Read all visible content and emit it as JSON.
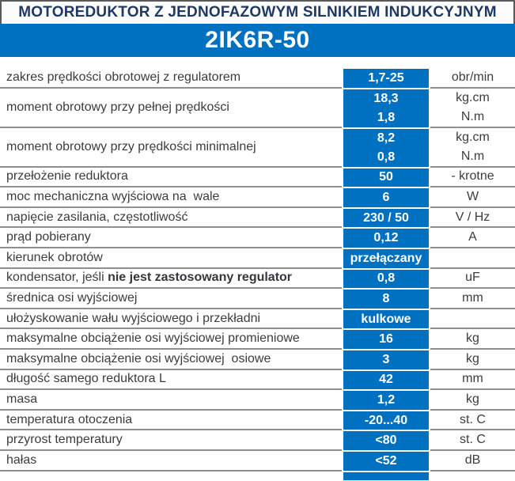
{
  "header": {
    "title": "MOTOREDUKTOR Z JEDNOFAZOWYM SILNIKIEM INDUKCYJNYM",
    "model": "2IK6R-50"
  },
  "colors": {
    "accent_blue": "#0070C0",
    "title_text": "#1F3864",
    "body_text": "#3C3C3C",
    "separator": "#8F8F8F",
    "value_text": "#FFFFFF"
  },
  "table": {
    "rows": [
      {
        "label": "zakres prędkości obrotowej z regulatorem",
        "values": [
          "1,7-25"
        ],
        "units": [
          "obr/min"
        ]
      },
      {
        "label": "moment obrotowy przy pełnej prędkości",
        "values": [
          "18,3",
          "1,8"
        ],
        "units": [
          "kg.cm",
          "N.m"
        ]
      },
      {
        "label": "moment obrotowy przy prędkości minimalnej",
        "values": [
          "8,2",
          "0,8"
        ],
        "units": [
          "kg.cm",
          "N.m"
        ]
      },
      {
        "label": "przełożenie reduktora",
        "values": [
          "50"
        ],
        "units": [
          "- krotne"
        ]
      },
      {
        "label": "moc mechaniczna wyjściowa na  wale",
        "values": [
          "6"
        ],
        "units": [
          "W"
        ]
      },
      {
        "label": "napięcie zasilania, częstotliwość",
        "values": [
          "230 / 50"
        ],
        "units": [
          "V / Hz"
        ]
      },
      {
        "label": "prąd pobierany",
        "values": [
          "0,12"
        ],
        "units": [
          "A"
        ]
      },
      {
        "label": "kierunek obrotów",
        "values": [
          "przełączany"
        ],
        "units": [
          ""
        ]
      },
      {
        "label": "kondensator, jeśli ",
        "label_bold": "nie jest zastosowany regulator",
        "values": [
          "0,8"
        ],
        "units": [
          "uF"
        ]
      },
      {
        "label": "średnica osi wyjściowej",
        "values": [
          "8"
        ],
        "units": [
          "mm"
        ]
      },
      {
        "label": "ułożyskowanie wału wyjściowego i przekładni",
        "values": [
          "kulkowe"
        ],
        "units": [
          ""
        ]
      },
      {
        "label": "maksymalne obciążenie osi wyjściowej promieniowe",
        "values": [
          "16"
        ],
        "units": [
          "kg"
        ]
      },
      {
        "label": "maksymalne obciążenie osi wyjściowej  osiowe",
        "values": [
          "3"
        ],
        "units": [
          "kg"
        ]
      },
      {
        "label": "długość samego reduktora L",
        "values": [
          "42"
        ],
        "units": [
          "mm"
        ]
      },
      {
        "label": "masa",
        "values": [
          "1,2"
        ],
        "units": [
          "kg"
        ]
      },
      {
        "label": "temperatura otoczenia",
        "values": [
          "-20...40"
        ],
        "units": [
          "st. C"
        ]
      },
      {
        "label": "przyrost temperatury",
        "values": [
          "<80"
        ],
        "units": [
          "st. C"
        ]
      },
      {
        "label": "hałas",
        "values": [
          "<52"
        ],
        "units": [
          "dB"
        ]
      }
    ]
  }
}
